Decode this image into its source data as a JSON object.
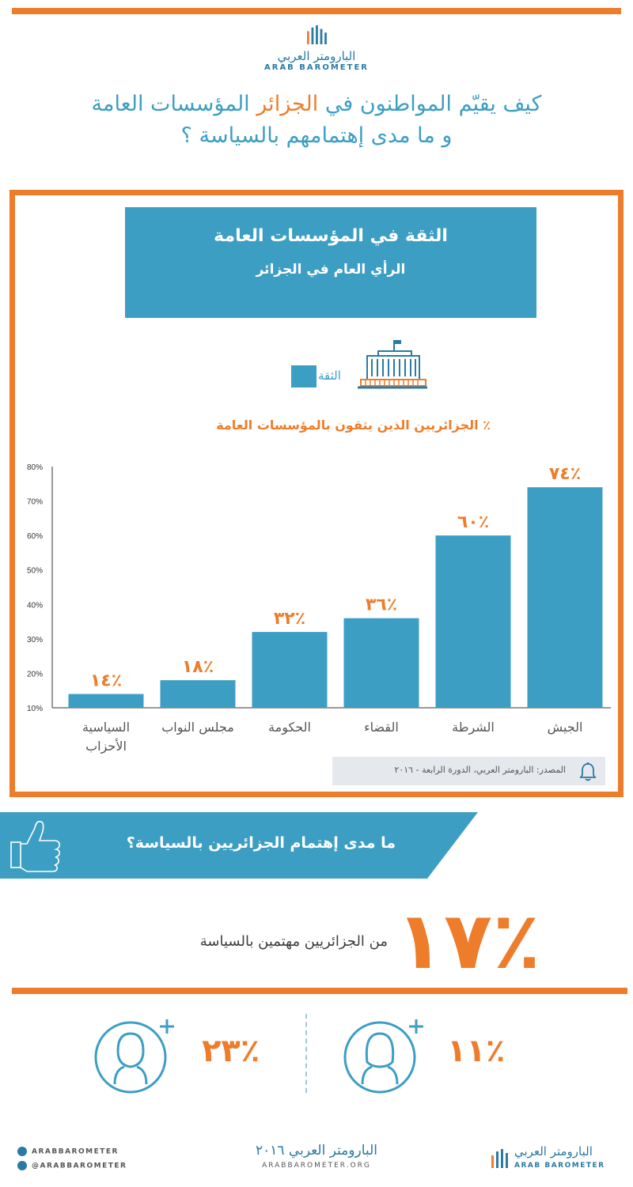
{
  "logo": {
    "arabic": "البارومتر العربي",
    "english": "ARAB BAROMETER"
  },
  "headline": {
    "line1_a": "كيف يقيّم المواطنون في ",
    "line1_highlight": "الجزائر",
    "line1_b": " المؤسسات العامة",
    "line2": "و ما مدى إهتمامهم بالسياسة ؟"
  },
  "box_title": "الثقة في المؤسسات العامة",
  "box_subtitle": "الرأي العام في الجزائر",
  "legend_label": "الثقة",
  "chart_subtitle": "٪ الجزائريين الذين يثقون بالمؤسسات العامة",
  "chart_data": {
    "type": "bar",
    "categories": [
      "السياسية الأحزاب",
      "مجلس النواب",
      "الحكومة",
      "القضاء",
      "الشرطة",
      "الجيش"
    ],
    "category_lines": [
      [
        "السياسية",
        "الأحزاب"
      ],
      [
        "مجلس النواب"
      ],
      [
        "الحكومة"
      ],
      [
        "القضاء"
      ],
      [
        "الشرطة"
      ],
      [
        "الجيش"
      ]
    ],
    "values": [
      14,
      18,
      32,
      36,
      60,
      74
    ],
    "data_labels": [
      "١٤٪",
      "١٨٪",
      "٣٢٪",
      "٣٦٪",
      "٦٠٪",
      "٧٤٪"
    ],
    "ylim": [
      10,
      80
    ],
    "yticks": [
      "10%",
      "20%",
      "30%",
      "40%",
      "50%",
      "60%",
      "70%",
      "80%"
    ],
    "ytick_values": [
      10,
      20,
      30,
      40,
      50,
      60,
      70,
      80
    ],
    "bar_color": "#3d9ec4",
    "label_color": "#ee7d2b",
    "grid": false
  },
  "source": "المصدر: البارومتر العربي، الدورة الرابعة - ٢٠١٦",
  "interest_banner": "ما مدى إهتمام الجزائريين بالسياسة؟",
  "interest_pct": "١٧٪",
  "interest_caption": "من الجزائريين مهتمين بالسياسة",
  "male_pct": "٢٣٪",
  "female_pct": "١١٪",
  "footer": {
    "facebook": "ARABBAROMETER",
    "twitter": "@ARABBAROMETER",
    "center_title": "البارومتر العربي ٢٠١٦",
    "center_url": "ARABBAROMETER.ORG",
    "logo_arabic": "البارومتر العربي",
    "logo_english": "ARAB BAROMETER"
  },
  "colors": {
    "orange": "#ee7d2b",
    "blue": "#3d9ec4",
    "dark_blue": "#2a7aa3"
  }
}
